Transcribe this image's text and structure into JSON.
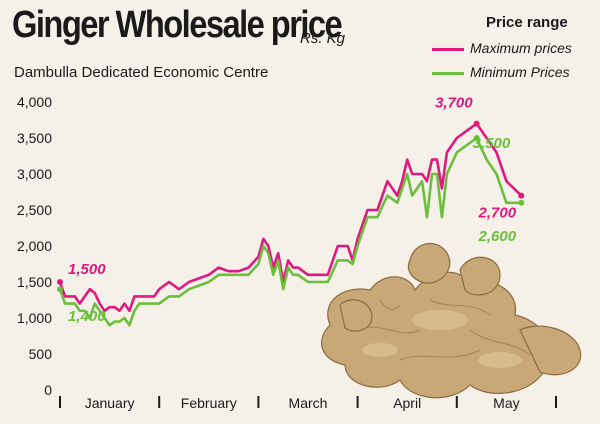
{
  "header": {
    "title": "Ginger Wholesale price",
    "unit": "Rs. Kg",
    "subtitle": "Dambulla Dedicated Economic Centre"
  },
  "legend": {
    "title": "Price range",
    "items": [
      {
        "label": "Maximum prices",
        "color": "#e0187f"
      },
      {
        "label": "Minimum Prices",
        "color": "#6cbf3c"
      }
    ]
  },
  "chart_data": {
    "type": "line",
    "title": "Ginger Wholesale price",
    "ylabel": "Rs. Kg",
    "ylim": [
      0,
      4000
    ],
    "yticks": [
      "0",
      "500",
      "1,000",
      "1,500",
      "2,000",
      "2,500",
      "3,000",
      "3,500",
      "4,000"
    ],
    "x_categories": [
      "January",
      "February",
      "March",
      "April",
      "May"
    ],
    "x": [
      0,
      0.05,
      0.1,
      0.15,
      0.2,
      0.25,
      0.3,
      0.35,
      0.4,
      0.45,
      0.5,
      0.55,
      0.6,
      0.65,
      0.7,
      0.75,
      0.8,
      0.85,
      0.9,
      0.95,
      1.0,
      1.1,
      1.2,
      1.3,
      1.4,
      1.5,
      1.6,
      1.7,
      1.8,
      1.9,
      2.0,
      2.05,
      2.1,
      2.15,
      2.2,
      2.25,
      2.3,
      2.35,
      2.4,
      2.45,
      2.5,
      2.6,
      2.7,
      2.8,
      2.85,
      2.9,
      2.95,
      3.0,
      3.1,
      3.2,
      3.3,
      3.4,
      3.45,
      3.5,
      3.55,
      3.6,
      3.65,
      3.7,
      3.75,
      3.8,
      3.85,
      3.9,
      4.0,
      4.1,
      4.2,
      4.3,
      4.4,
      4.5,
      4.65
    ],
    "series": [
      {
        "name": "Maximum prices",
        "color": "#e0187f",
        "values": [
          1500,
          1300,
          1300,
          1300,
          1200,
          1300,
          1400,
          1350,
          1200,
          1100,
          1150,
          1150,
          1100,
          1200,
          1100,
          1300,
          1300,
          1300,
          1300,
          1300,
          1400,
          1500,
          1400,
          1500,
          1550,
          1600,
          1700,
          1650,
          1650,
          1700,
          1850,
          2100,
          2000,
          1700,
          1900,
          1500,
          1800,
          1700,
          1700,
          1650,
          1600,
          1600,
          1600,
          2000,
          2000,
          2000,
          1800,
          2100,
          2500,
          2500,
          2900,
          2700,
          2900,
          3200,
          3000,
          3000,
          3000,
          2900,
          3200,
          3200,
          2800,
          3300,
          3500,
          3600,
          3700,
          3500,
          3300,
          2900,
          2700
        ],
        "data_labels": [
          {
            "index": 0,
            "text": "1,500"
          },
          {
            "index": 64,
            "text": "3,700"
          },
          {
            "index": 68,
            "text": "2,700"
          }
        ]
      },
      {
        "name": "Minimum Prices",
        "color": "#6cbf3c",
        "values": [
          1400,
          1200,
          1200,
          1200,
          1100,
          1100,
          1000,
          1200,
          1100,
          1000,
          900,
          950,
          950,
          1000,
          900,
          1100,
          1200,
          1200,
          1200,
          1200,
          1200,
          1300,
          1300,
          1400,
          1450,
          1500,
          1600,
          1600,
          1600,
          1600,
          1750,
          2000,
          1900,
          1600,
          1800,
          1400,
          1700,
          1600,
          1600,
          1550,
          1500,
          1500,
          1500,
          1800,
          1800,
          1800,
          1750,
          2000,
          2400,
          2400,
          2700,
          2600,
          2800,
          3000,
          2700,
          2800,
          2900,
          2400,
          3000,
          3000,
          2400,
          3000,
          3300,
          3400,
          3500,
          3200,
          3000,
          2600,
          2600
        ],
        "data_labels": [
          {
            "index": 0,
            "text": "1,400"
          },
          {
            "index": 64,
            "text": "3,500"
          },
          {
            "index": 68,
            "text": "2,600"
          }
        ]
      }
    ],
    "grid": false,
    "legend_position": "top-right"
  }
}
